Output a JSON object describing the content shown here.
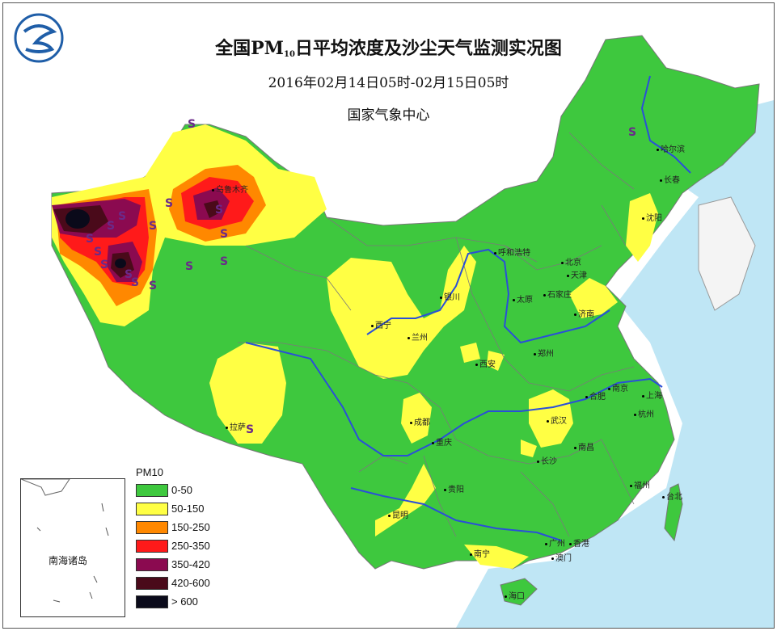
{
  "title": {
    "main_pre": "全国PM",
    "main_sub": "10",
    "main_post": "日平均浓度及沙尘天气监测实况图",
    "period": "2016年02月14日05时-02月15日05时",
    "issuer": "国家气象中心"
  },
  "legend": {
    "title": "PM10",
    "items": [
      {
        "label": "0-50",
        "color": "#3ec83e"
      },
      {
        "label": "50-150",
        "color": "#ffff44"
      },
      {
        "label": "150-250",
        "color": "#ff8800"
      },
      {
        "label": "250-350",
        "color": "#ff1a1a"
      },
      {
        "label": "350-420",
        "color": "#8b0a50"
      },
      {
        "label": "420-600",
        "color": "#4a0a1a"
      },
      {
        "label": "> 600",
        "color": "#0a0a1a"
      }
    ]
  },
  "inset": {
    "label": "南海诸岛"
  },
  "cities": [
    {
      "name": "乌鲁木齐"
    },
    {
      "name": "哈尔滨"
    },
    {
      "name": "长春"
    },
    {
      "name": "沈阳"
    },
    {
      "name": "呼和浩特"
    },
    {
      "name": "北京"
    },
    {
      "name": "天津"
    },
    {
      "name": "石家庄"
    },
    {
      "name": "太原"
    },
    {
      "name": "济南"
    },
    {
      "name": "银川"
    },
    {
      "name": "兰州"
    },
    {
      "name": "西宁"
    },
    {
      "name": "西安"
    },
    {
      "name": "郑州"
    },
    {
      "name": "合肥"
    },
    {
      "name": "南京"
    },
    {
      "name": "上海"
    },
    {
      "name": "杭州"
    },
    {
      "name": "武汉"
    },
    {
      "name": "成都"
    },
    {
      "name": "重庆"
    },
    {
      "name": "拉萨"
    },
    {
      "name": "长沙"
    },
    {
      "name": "南昌"
    },
    {
      "name": "贵阳"
    },
    {
      "name": "福州"
    },
    {
      "name": "台北"
    },
    {
      "name": "昆明"
    },
    {
      "name": "南宁"
    },
    {
      "name": "广州"
    },
    {
      "name": "香港"
    },
    {
      "name": "澳门"
    },
    {
      "name": "海口"
    }
  ],
  "dust_symbol": "S",
  "colors": {
    "sea": "#bfe6f5",
    "land_outside": "#ffffff",
    "river": "#2a4fd8",
    "border": "#888888"
  }
}
